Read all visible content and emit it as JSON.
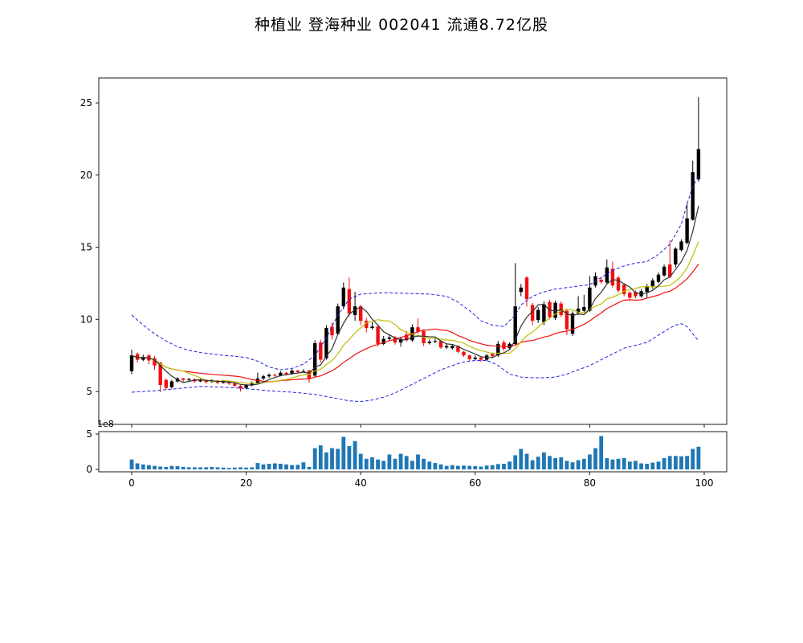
{
  "title": {
    "text": "种植业  登海种业  002041  流通8.72亿股"
  },
  "chart_data": {
    "type": "candlestick",
    "sector": "种植业",
    "stock_name": "登海种业",
    "stock_code": "002041",
    "float_shares_label": "流通8.72亿股",
    "count": 100,
    "open": [
      6.4,
      7.6,
      7.2,
      7.5,
      7.3,
      7.0,
      5.8,
      5.3,
      5.7,
      5.9,
      5.8,
      5.85,
      5.7,
      5.8,
      5.65,
      5.75,
      5.6,
      5.7,
      5.55,
      5.4,
      5.25,
      5.45,
      5.6,
      5.9,
      6.05,
      6.15,
      6.1,
      6.3,
      6.2,
      6.45,
      6.35,
      6.45,
      6.1,
      8.4,
      7.3,
      9.5,
      9.0,
      10.9,
      12.1,
      10.3,
      10.9,
      9.9,
      9.4,
      9.5,
      8.3,
      8.65,
      8.75,
      8.4,
      8.95,
      8.55,
      9.45,
      9.2,
      8.35,
      8.45,
      8.5,
      8.05,
      8.0,
      8.15,
      7.75,
      7.5,
      7.25,
      7.35,
      7.2,
      7.6,
      7.5,
      8.4,
      8.0,
      8.3,
      11.9,
      12.9,
      11.0,
      9.95,
      9.8,
      11.2,
      10.1,
      11.1,
      10.6,
      9.0,
      10.45,
      10.6,
      10.6,
      12.35,
      12.75,
      12.55,
      13.5,
      12.9,
      12.4,
      11.85,
      11.9,
      11.6,
      11.9,
      12.3,
      12.6,
      13.05,
      13.8,
      13.8,
      14.8,
      15.3,
      16.9,
      19.7
    ],
    "close": [
      7.5,
      7.2,
      7.4,
      7.15,
      6.8,
      5.45,
      5.25,
      5.7,
      5.9,
      5.8,
      5.85,
      5.7,
      5.8,
      5.65,
      5.75,
      5.6,
      5.7,
      5.55,
      5.4,
      5.2,
      5.45,
      5.6,
      5.9,
      6.05,
      6.15,
      6.1,
      6.3,
      6.2,
      6.45,
      6.35,
      6.4,
      5.9,
      8.35,
      7.2,
      9.4,
      8.9,
      10.9,
      12.2,
      10.4,
      10.9,
      9.9,
      9.4,
      9.5,
      8.3,
      8.65,
      8.75,
      8.4,
      8.65,
      8.55,
      9.45,
      9.15,
      8.35,
      8.45,
      8.5,
      8.05,
      8.15,
      8.15,
      7.75,
      7.5,
      7.25,
      7.35,
      7.2,
      7.5,
      7.45,
      8.3,
      7.95,
      8.3,
      10.9,
      12.2,
      11.4,
      9.9,
      10.65,
      11.05,
      10.15,
      11.15,
      10.3,
      9.3,
      10.4,
      10.75,
      10.85,
      12.2,
      13.0,
      12.6,
      13.6,
      12.35,
      12.0,
      11.75,
      11.5,
      11.6,
      11.95,
      12.3,
      12.7,
      13.1,
      13.65,
      12.95,
      14.9,
      15.4,
      17.0,
      20.2,
      21.8
    ],
    "high": [
      7.9,
      7.7,
      7.55,
      7.6,
      7.45,
      7.05,
      5.9,
      5.8,
      6.0,
      5.95,
      5.95,
      5.9,
      5.9,
      5.85,
      5.85,
      5.8,
      5.8,
      5.75,
      5.6,
      5.45,
      5.5,
      5.7,
      6.3,
      6.15,
      6.25,
      6.25,
      6.4,
      6.35,
      6.55,
      6.5,
      6.55,
      6.5,
      8.55,
      8.6,
      9.6,
      9.8,
      11.1,
      12.55,
      12.9,
      11.9,
      11.0,
      10.1,
      9.8,
      9.6,
      8.85,
      8.95,
      8.85,
      8.8,
      9.2,
      9.65,
      10.05,
      9.3,
      8.6,
      8.65,
      8.55,
      8.3,
      8.25,
      8.2,
      7.8,
      7.55,
      7.5,
      7.4,
      7.6,
      7.7,
      8.5,
      8.55,
      8.4,
      13.9,
      12.45,
      13.0,
      11.15,
      10.85,
      11.25,
      11.35,
      11.3,
      11.25,
      10.7,
      10.55,
      11.6,
      11.7,
      13.0,
      13.25,
      12.95,
      14.15,
      14.0,
      13.0,
      12.5,
      11.95,
      12.0,
      12.1,
      12.45,
      12.85,
      13.25,
      13.8,
      15.5,
      15.0,
      15.55,
      18.0,
      21.0,
      25.4
    ],
    "low": [
      6.2,
      7.0,
      7.1,
      6.9,
      6.5,
      4.95,
      5.1,
      5.2,
      5.6,
      5.65,
      5.7,
      5.6,
      5.65,
      5.55,
      5.6,
      5.5,
      5.55,
      5.45,
      5.3,
      5.0,
      5.15,
      5.35,
      5.55,
      5.8,
      5.95,
      6.0,
      6.05,
      6.1,
      6.15,
      6.25,
      6.3,
      5.6,
      6.0,
      7.0,
      7.2,
      8.6,
      8.9,
      10.7,
      10.2,
      9.9,
      9.6,
      9.1,
      9.3,
      8.1,
      8.2,
      8.5,
      8.25,
      8.1,
      8.45,
      8.45,
      9.0,
      8.15,
      8.25,
      8.35,
      7.95,
      7.95,
      7.9,
      7.65,
      7.4,
      7.1,
      7.15,
      7.05,
      7.1,
      7.35,
      7.4,
      7.8,
      7.9,
      8.2,
      11.6,
      10.9,
      9.6,
      9.75,
      9.6,
      10.0,
      9.95,
      10.15,
      8.9,
      8.85,
      10.3,
      10.45,
      10.5,
      12.2,
      12.45,
      12.45,
      12.2,
      11.85,
      11.6,
      11.3,
      11.45,
      11.5,
      11.5,
      12.1,
      12.5,
      12.95,
      12.85,
      13.6,
      14.7,
      15.2,
      16.85,
      19.55
    ],
    "volume_1e8": [
      1.4,
      0.85,
      0.7,
      0.6,
      0.5,
      0.4,
      0.35,
      0.5,
      0.45,
      0.35,
      0.3,
      0.3,
      0.3,
      0.3,
      0.35,
      0.3,
      0.25,
      0.2,
      0.25,
      0.3,
      0.25,
      0.3,
      0.9,
      0.7,
      0.8,
      0.85,
      0.8,
      0.7,
      0.6,
      0.65,
      1.0,
      0.35,
      3.0,
      3.4,
      2.4,
      3.0,
      2.9,
      4.6,
      3.3,
      4.0,
      2.2,
      1.5,
      1.7,
      1.4,
      1.2,
      2.1,
      1.5,
      2.2,
      1.9,
      1.2,
      2.1,
      1.5,
      1.1,
      0.9,
      0.7,
      0.5,
      0.6,
      0.5,
      0.55,
      0.5,
      0.45,
      0.4,
      0.55,
      0.6,
      0.75,
      0.8,
      1.1,
      2.0,
      2.9,
      2.2,
      1.3,
      1.8,
      2.4,
      1.9,
      1.6,
      1.7,
      1.2,
      1.0,
      1.3,
      1.5,
      2.1,
      3.0,
      4.7,
      1.6,
      1.4,
      1.5,
      1.6,
      1.1,
      1.2,
      0.85,
      0.8,
      0.95,
      1.1,
      1.6,
      1.9,
      1.9,
      1.85,
      1.9,
      2.9,
      3.2
    ],
    "ma_windows": [
      5,
      10,
      20
    ],
    "bollinger_upper_anchors": [
      [
        0,
        10.3
      ],
      [
        2,
        9.6
      ],
      [
        4,
        9.0
      ],
      [
        6,
        8.5
      ],
      [
        8,
        8.1
      ],
      [
        10,
        7.85
      ],
      [
        12,
        7.7
      ],
      [
        14,
        7.6
      ],
      [
        16,
        7.5
      ],
      [
        18,
        7.45
      ],
      [
        20,
        7.35
      ],
      [
        22,
        7.1
      ],
      [
        24,
        6.7
      ],
      [
        26,
        6.5
      ],
      [
        28,
        6.6
      ],
      [
        30,
        6.9
      ],
      [
        32,
        7.5
      ],
      [
        34,
        8.7
      ],
      [
        36,
        10.3
      ],
      [
        38,
        11.4
      ],
      [
        40,
        11.75
      ],
      [
        44,
        11.85
      ],
      [
        48,
        11.8
      ],
      [
        52,
        11.75
      ],
      [
        55,
        11.6
      ],
      [
        57,
        11.2
      ],
      [
        59,
        10.6
      ],
      [
        61,
        9.9
      ],
      [
        63,
        9.6
      ],
      [
        65,
        9.5
      ],
      [
        67,
        10.3
      ],
      [
        68,
        11.0
      ],
      [
        70,
        11.6
      ],
      [
        72,
        11.9
      ],
      [
        74,
        12.1
      ],
      [
        76,
        12.2
      ],
      [
        78,
        12.3
      ],
      [
        80,
        12.4
      ],
      [
        82,
        12.9
      ],
      [
        84,
        13.4
      ],
      [
        86,
        13.7
      ],
      [
        88,
        13.9
      ],
      [
        90,
        14.0
      ],
      [
        92,
        14.5
      ],
      [
        94,
        15.2
      ],
      [
        96,
        16.6
      ],
      [
        97,
        18.0
      ],
      [
        98,
        19.2
      ],
      [
        99,
        19.9
      ]
    ],
    "bollinger_lower_anchors": [
      [
        0,
        4.95
      ],
      [
        4,
        5.05
      ],
      [
        8,
        5.2
      ],
      [
        12,
        5.35
      ],
      [
        16,
        5.3
      ],
      [
        20,
        5.2
      ],
      [
        24,
        5.05
      ],
      [
        28,
        4.95
      ],
      [
        32,
        4.8
      ],
      [
        34,
        4.65
      ],
      [
        36,
        4.5
      ],
      [
        38,
        4.35
      ],
      [
        40,
        4.3
      ],
      [
        42,
        4.4
      ],
      [
        44,
        4.6
      ],
      [
        46,
        4.9
      ],
      [
        48,
        5.3
      ],
      [
        50,
        5.7
      ],
      [
        52,
        6.1
      ],
      [
        54,
        6.5
      ],
      [
        56,
        6.8
      ],
      [
        58,
        7.05
      ],
      [
        60,
        7.15
      ],
      [
        62,
        7.15
      ],
      [
        63,
        7.0
      ],
      [
        64,
        6.8
      ],
      [
        65,
        6.5
      ],
      [
        66,
        6.2
      ],
      [
        68,
        6.0
      ],
      [
        70,
        5.95
      ],
      [
        72,
        5.95
      ],
      [
        74,
        6.0
      ],
      [
        76,
        6.2
      ],
      [
        78,
        6.5
      ],
      [
        80,
        6.8
      ],
      [
        82,
        7.2
      ],
      [
        84,
        7.6
      ],
      [
        86,
        8.0
      ],
      [
        88,
        8.2
      ],
      [
        90,
        8.4
      ],
      [
        92,
        8.9
      ],
      [
        94,
        9.4
      ],
      [
        95,
        9.6
      ],
      [
        96,
        9.7
      ],
      [
        97,
        9.5
      ],
      [
        98,
        9.0
      ],
      [
        99,
        8.5
      ]
    ],
    "price_axis": {
      "ticks": [
        "5",
        "10",
        "15",
        "20",
        "25"
      ],
      "tick_values": [
        5,
        10,
        15,
        20,
        25
      ],
      "range": [
        2.72,
        26.73
      ]
    },
    "x_axis": {
      "ticks": [
        "0",
        "20",
        "40",
        "60",
        "80",
        "100"
      ],
      "tick_values": [
        0,
        20,
        40,
        60,
        80,
        100
      ],
      "range": [
        -5.7,
        104.3
      ]
    },
    "volume_axis": {
      "ticks": [
        "0",
        "5"
      ],
      "tick_values": [
        0,
        5
      ],
      "offset_label": "1e8",
      "range": [
        -0.35,
        5.35
      ]
    },
    "colors": {
      "up": "#000000",
      "down": "#f01010",
      "ma5": "#303030",
      "ma10": "#bfbf00",
      "ma20": "#f01010",
      "bollinger": "#2222e0",
      "volume_bar": "#1f77b4",
      "axis": "#1a1a1a"
    },
    "legend": null,
    "grid": false
  }
}
